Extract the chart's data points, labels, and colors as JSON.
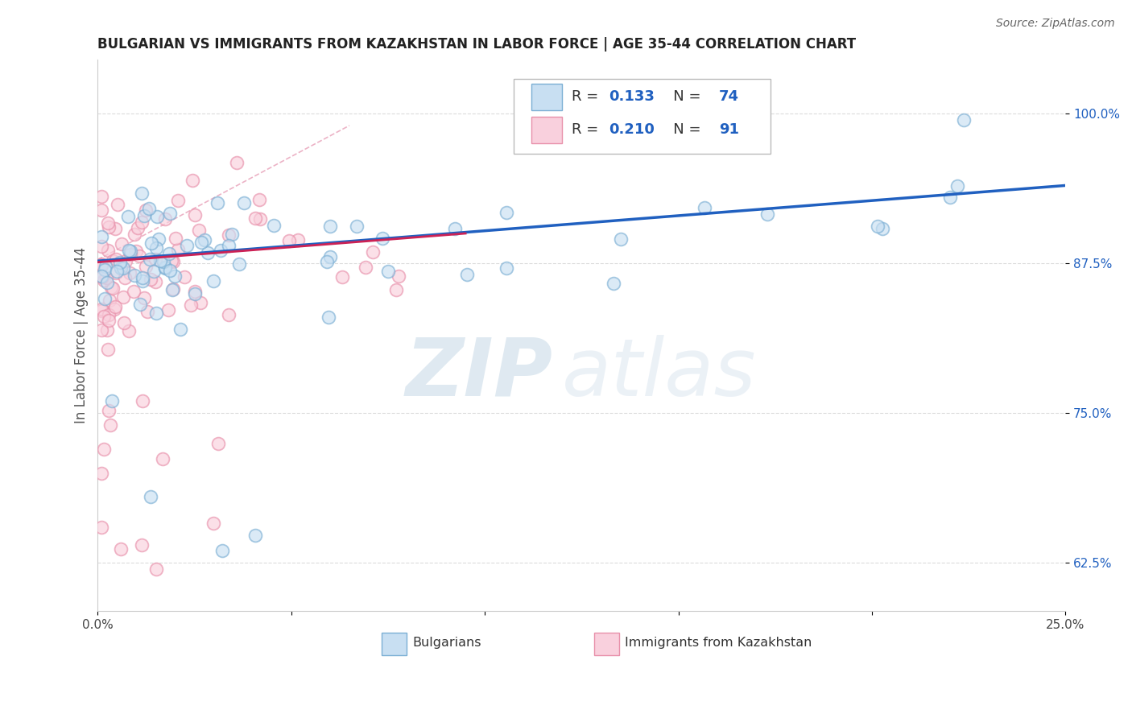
{
  "title": "BULGARIAN VS IMMIGRANTS FROM KAZAKHSTAN IN LABOR FORCE | AGE 35-44 CORRELATION CHART",
  "source": "Source: ZipAtlas.com",
  "ylabel": "In Labor Force | Age 35-44",
  "watermark_zip": "ZIP",
  "watermark_atlas": "atlas",
  "xlim": [
    0.0,
    0.25
  ],
  "ylim": [
    0.585,
    1.045
  ],
  "xticks": [
    0.0,
    0.05,
    0.1,
    0.15,
    0.2,
    0.25
  ],
  "xtick_labels": [
    "0.0%",
    "",
    "",
    "",
    "",
    "25.0%"
  ],
  "yticks": [
    0.625,
    0.75,
    0.875,
    1.0
  ],
  "ytick_labels": [
    "62.5%",
    "75.0%",
    "87.5%",
    "100.0%"
  ],
  "blue_R": 0.133,
  "blue_N": 74,
  "pink_R": 0.21,
  "pink_N": 91,
  "blue_face_color": "#c8dff2",
  "blue_edge_color": "#7bafd4",
  "pink_face_color": "#f9d0dd",
  "pink_edge_color": "#e890aa",
  "blue_trend_color": "#2060c0",
  "pink_trend_color": "#cc2255",
  "pink_dash_color": "#e8a0b8",
  "scatter_alpha": 0.65,
  "scatter_size": 130,
  "grid_color": "#cccccc",
  "background_color": "#ffffff",
  "title_fontsize": 12,
  "axis_label_fontsize": 12,
  "tick_fontsize": 11,
  "legend_fontsize": 13,
  "legend_value_color": "#2060c0",
  "bottom_legend": [
    "Bulgarians",
    "Immigrants from Kazakhstan"
  ]
}
